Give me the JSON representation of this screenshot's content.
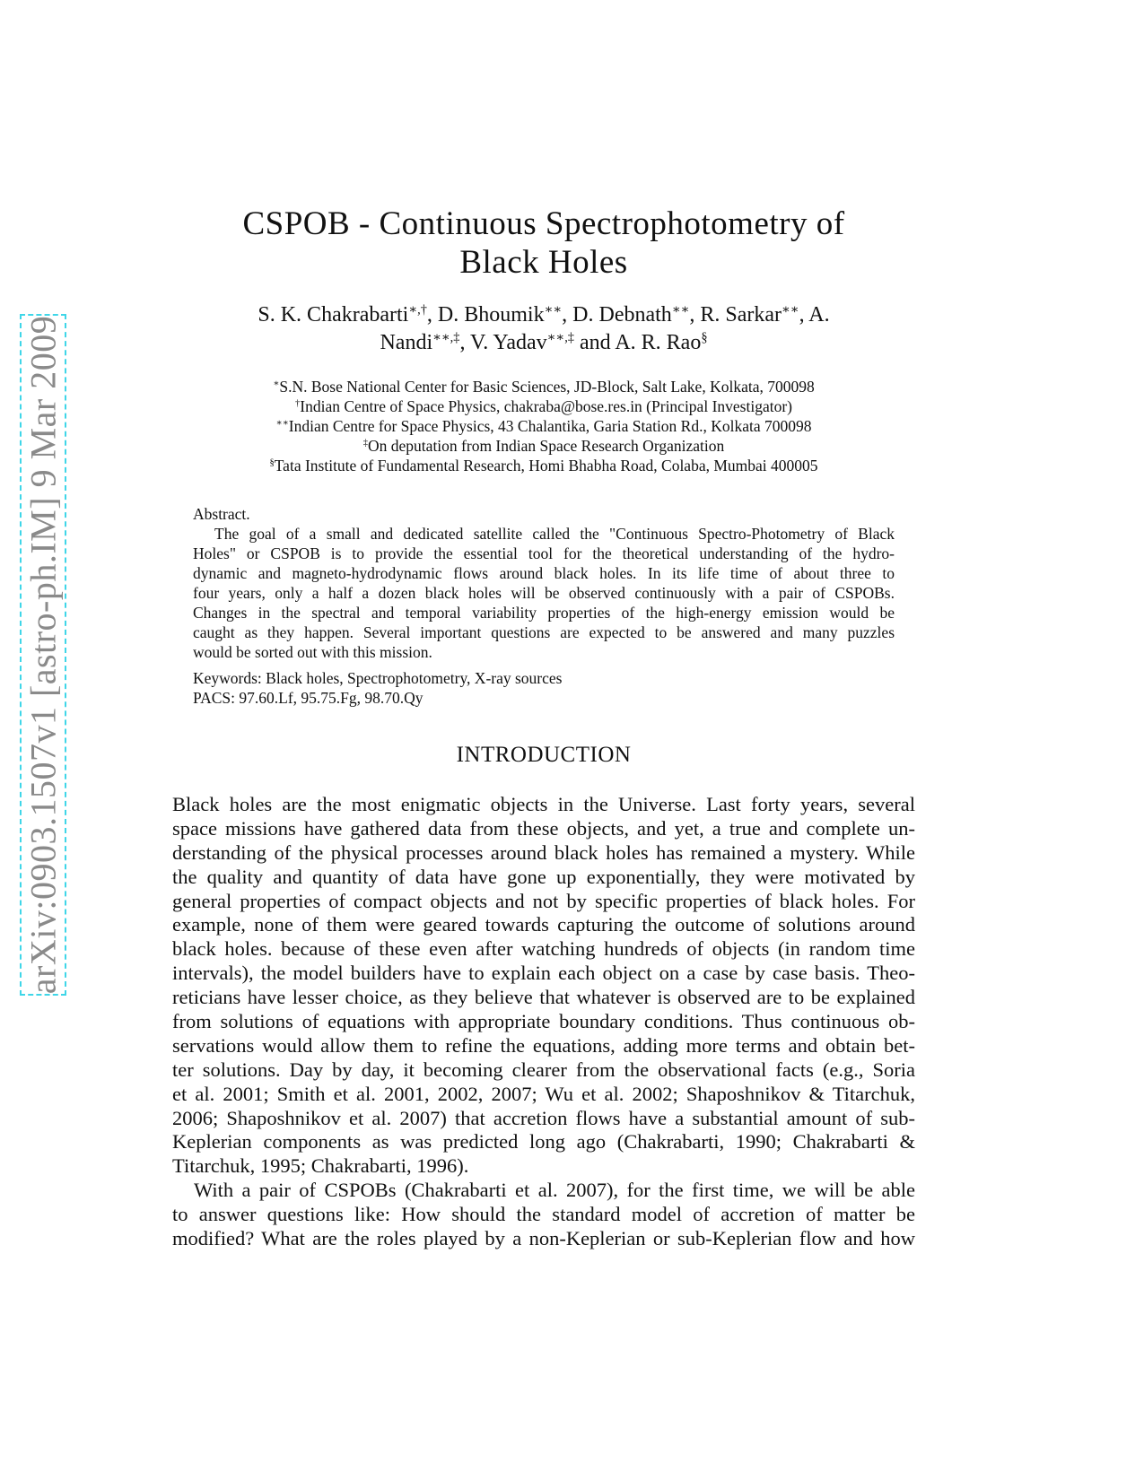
{
  "stamp": "arXiv:0903.1507v1  [astro-ph.IM]  9 Mar 2009",
  "title": [
    "CSPOB - Continuous Spectrophotometry of",
    "Black Holes"
  ],
  "authors": [
    [
      {
        "t": "S. K. Chakrabarti",
        "s": "∗,†"
      },
      {
        "t": ", D. Bhoumik",
        "s": "∗∗"
      },
      {
        "t": ", D. Debnath",
        "s": "∗∗"
      },
      {
        "t": ", R. Sarkar",
        "s": "∗∗"
      },
      {
        "t": ", A.",
        "s": ""
      }
    ],
    [
      {
        "t": "Nandi",
        "s": "∗∗,‡"
      },
      {
        "t": ", V. Yadav",
        "s": "∗∗,‡"
      },
      {
        "t": " and A. R. Rao",
        "s": "§"
      }
    ]
  ],
  "affiliations": [
    {
      "m": "∗",
      "t": "S.N. Bose National Center for Basic Sciences, JD-Block, Salt Lake, Kolkata, 700098"
    },
    {
      "m": "†",
      "t": "Indian Centre of Space Physics, chakraba@bose.res.in (Principal Investigator)"
    },
    {
      "m": "∗∗",
      "t": "Indian Centre for Space Physics, 43 Chalantika, Garia Station Rd., Kolkata 700098"
    },
    {
      "m": "‡",
      "t": "On deputation from Indian Space Research Organization"
    },
    {
      "m": "§",
      "t": "Tata Institute of Fundamental Research, Homi Bhabha Road, Colaba, Mumbai 400005"
    }
  ],
  "abstract": {
    "heading": "Abstract.",
    "lines": [
      "The goal of a small and dedicated satellite called the \"Continuous Spectro-Photometry of Black",
      "Holes\" or CSPOB is to provide the essential tool for the theoretical understanding of the hydro-",
      "dynamic and magneto-hydrodynamic flows around black holes. In its life time of about three to",
      "four years, only a half a dozen black holes will be observed continuously with a pair of CSPOBs.",
      "Changes in the spectral and temporal variability properties of the high-energy emission would be",
      "caught as they happen. Several important questions are expected to be answered and many puzzles",
      "would be sorted out with this mission."
    ]
  },
  "keywords": "Keywords:  Black holes, Spectrophotometry, X-ray sources",
  "pacs": "PACS:  97.60.Lf, 95.75.Fg, 98.70.Qy",
  "section": "INTRODUCTION",
  "paragraphs": [
    [
      "Black holes are the most enigmatic objects in the Universe. Last forty years, several",
      "space missions have gathered data from these objects, and yet, a true and complete un-",
      "derstanding of the physical processes around black holes has remained a mystery. While",
      "the quality and quantity of data have gone up exponentially, they were motivated by",
      "general properties of compact objects and not by specific properties of black holes. For",
      "example, none of them were geared towards capturing the outcome of solutions around",
      "black holes. because of these even after watching hundreds of objects (in random time",
      "intervals), the model builders have to explain each object on a case by case basis. Theo-",
      "reticians have lesser choice, as they believe that whatever is observed are to be explained",
      "from solutions of equations with appropriate boundary conditions. Thus continuous ob-",
      "servations would allow them to refine the equations, adding more terms and obtain bet-",
      "ter solutions. Day by day, it becoming clearer from the observational facts (e.g., Soria",
      "et al. 2001; Smith et al. 2001, 2002, 2007; Wu et al. 2002; Shaposhnikov & Titarchuk,",
      "2006; Shaposhnikov et al. 2007) that accretion flows have a substantial amount of sub-",
      "Keplerian components as was predicted long ago (Chakrabarti, 1990; Chakrabarti &",
      "Titarchuk, 1995; Chakrabarti, 1996)."
    ],
    [
      "With a pair of CSPOBs (Chakrabarti et al. 2007), for the first time, we will be able",
      "to answer questions like: How should the standard model of accretion of matter be",
      "modified? What are the roles played by a non-Keplerian or sub-Keplerian flow and how"
    ]
  ]
}
